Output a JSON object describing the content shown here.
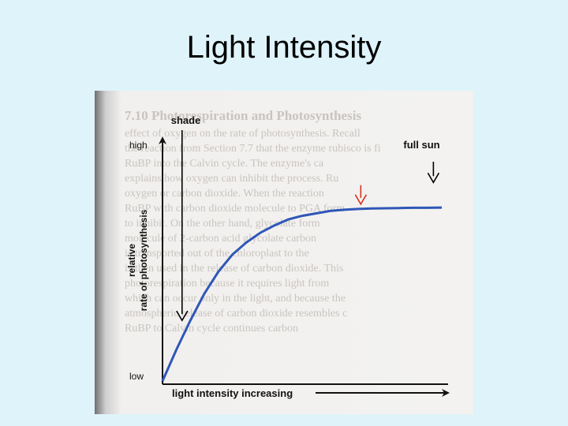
{
  "slide": {
    "title": "Light Intensity"
  },
  "chart_data": {
    "type": "line",
    "title": "",
    "xlabel": "light intensity increasing",
    "ylabel": "relative rate of photosynthesis",
    "ylabel_lines": [
      "relative",
      "rate of photosynthesis"
    ],
    "y_tick_labels": {
      "high": "high",
      "low": "low"
    },
    "xlim": [
      0,
      1
    ],
    "ylim": [
      0,
      1
    ],
    "grid": false,
    "series": [
      {
        "color": "#2f57b8",
        "x": [
          0,
          0.05,
          0.1,
          0.15,
          0.2,
          0.25,
          0.3,
          0.35,
          0.4,
          0.45,
          0.5,
          0.55,
          0.6,
          0.65,
          0.7,
          0.75,
          0.8,
          0.85,
          0.9,
          0.95,
          1.0
        ],
        "y": [
          0,
          0.13,
          0.25,
          0.36,
          0.45,
          0.52,
          0.57,
          0.61,
          0.64,
          0.665,
          0.68,
          0.69,
          0.7,
          0.705,
          0.708,
          0.71,
          0.711,
          0.712,
          0.713,
          0.713,
          0.714
        ]
      }
    ],
    "annotations": [
      {
        "label": "shade",
        "x": 0.07,
        "color": "#000000"
      },
      {
        "label": "full sun",
        "x": 0.97,
        "color": "#000000"
      },
      {
        "label": "",
        "x": 0.71,
        "color": "#d83020"
      }
    ]
  },
  "background_text_lines": [
    "7.10  Photorespiration and Photosynthesis",
    "effect of oxygen on the rate of photosynthesis. Recall",
    "the reaction from Section 7.7 that the enzyme rubisco is fi",
    "RuBP into the Calvin cycle. The enzyme's ca",
    "explains how oxygen can inhibit the process. Ru",
    "oxygen or carbon dioxide. When the reaction",
    "RuBP with carbon dioxide molecule to PGA form",
    "to inhibit. On the other hand, glycolate form",
    "molecule of 2-carbon acid glycolate carbon",
    "is transported out of the chloroplast to the",
    "is then used in the release of carbon dioxide. This",
    "photorespiration because it requires light from",
    "which can occur only in the light, and because the",
    "atmospheric release of carbon dioxide resembles c",
    "RuBP to Calvin cycle continues carbon"
  ]
}
